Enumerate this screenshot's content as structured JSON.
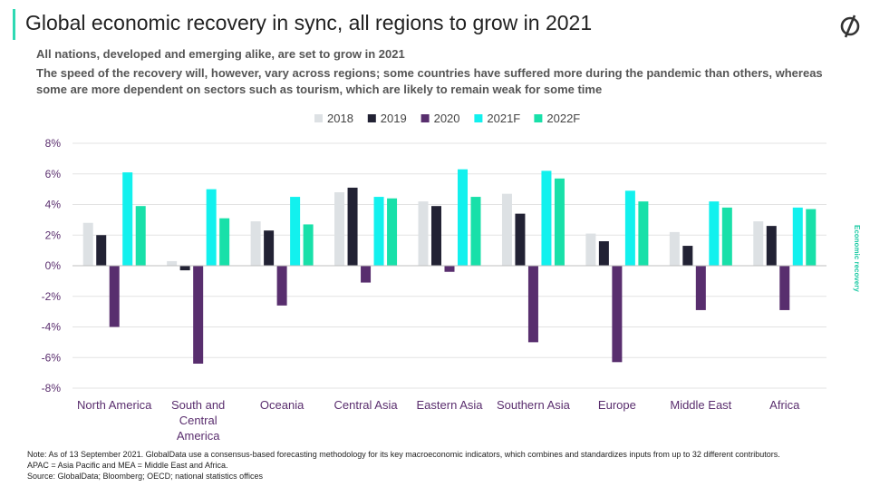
{
  "header": {
    "title": "Global economic recovery in sync, all regions to grow in 2021",
    "subtitle": "All nations, developed and emerging alike, are set to grow in 2021",
    "description": "The speed of the recovery will, however, vary across regions; some countries have suffered more during the pandemic than others, whereas some are more dependent on sectors such as tourism, which are likely to remain weak for some time"
  },
  "side_label": "Economic recovery",
  "footer": {
    "note": "Note: As of 13 September 2021. GlobalData use a consensus-based forecasting methodology for its key macroeconomic indicators, which combines and standardizes inputs from up to 32 different contributors.",
    "abbreviations": "APAC = Asia Pacific and MEA = Middle East and Africa.",
    "source": "Source: GlobalData; Bloomberg; OECD; national statistics offices"
  },
  "colors": {
    "accent": "#2fd9b3",
    "axis_label": "#5a2e6e"
  },
  "logo_icon": "globaldata-logo-icon",
  "chart_data": {
    "type": "bar",
    "categories": [
      "North America",
      "South and Central America",
      "Oceania",
      "Central Asia",
      "Eastern Asia",
      "Southern Asia",
      "Europe",
      "Middle East",
      "Africa"
    ],
    "category_lines": [
      [
        "North America"
      ],
      [
        "South and",
        "Central",
        "America"
      ],
      [
        "Oceania"
      ],
      [
        "Central Asia"
      ],
      [
        "Eastern Asia"
      ],
      [
        "Southern Asia"
      ],
      [
        "Europe"
      ],
      [
        "Middle East"
      ],
      [
        "Africa"
      ]
    ],
    "series": [
      {
        "name": "2018",
        "color": "#dde1e4",
        "values": [
          2.8,
          0.3,
          2.9,
          4.8,
          4.2,
          4.7,
          2.1,
          2.2,
          2.9
        ]
      },
      {
        "name": "2019",
        "color": "#222234",
        "values": [
          2.0,
          -0.3,
          2.3,
          5.1,
          3.9,
          3.4,
          1.6,
          1.3,
          2.6
        ]
      },
      {
        "name": "2020",
        "color": "#582e6e",
        "values": [
          -4.0,
          -6.4,
          -2.6,
          -1.1,
          -0.4,
          -5.0,
          -6.3,
          -2.9,
          -2.9
        ]
      },
      {
        "name": "2021F",
        "color": "#12f1ee",
        "values": [
          6.1,
          5.0,
          4.5,
          4.5,
          6.3,
          6.2,
          4.9,
          4.2,
          3.8
        ]
      },
      {
        "name": "2022F",
        "color": "#18e0a9",
        "values": [
          3.9,
          3.1,
          2.7,
          4.4,
          4.5,
          5.7,
          4.2,
          3.8,
          3.7
        ]
      }
    ],
    "ylim": [
      -8,
      8
    ],
    "yticks": [
      8,
      6,
      4,
      2,
      0,
      -2,
      -4,
      -6,
      -8
    ],
    "ytick_labels": [
      "8%",
      "6%",
      "4%",
      "2%",
      "0%",
      "-2%",
      "-4%",
      "-6%",
      "-8%"
    ],
    "grid": true,
    "legend_position": "top-center"
  }
}
